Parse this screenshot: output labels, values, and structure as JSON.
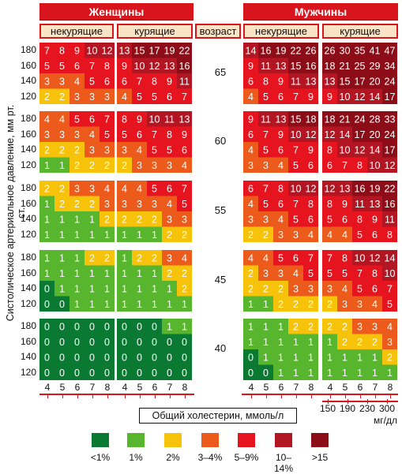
{
  "chart_data": {
    "type": "heatmap",
    "title_women": "Женщины",
    "title_men": "Мужчины",
    "col_group_labels": {
      "nonsmoking": "некурящие",
      "smoking": "курящие"
    },
    "age_header": "возраст",
    "ylabel": "Систолическое артериальное давление, мм рт. ст.",
    "xlabel": "Общий холестерин, ммоль/л",
    "bp_levels": [
      "180",
      "160",
      "140",
      "120"
    ],
    "cholesterol_mmol": [
      "4",
      "5",
      "6",
      "7",
      "8"
    ],
    "cholesterol_mgdl": [
      "150",
      "190",
      "230",
      "300"
    ],
    "mgdl_unit": "мг/дл",
    "ages": [
      "65",
      "60",
      "55",
      "45",
      "40"
    ],
    "women": {
      "nonsmoking": {
        "65": [
          [
            7,
            8,
            9,
            10,
            12
          ],
          [
            5,
            5,
            6,
            7,
            8
          ],
          [
            3,
            3,
            4,
            5,
            6
          ],
          [
            2,
            2,
            3,
            3,
            3
          ]
        ],
        "60": [
          [
            4,
            4,
            5,
            6,
            7
          ],
          [
            3,
            3,
            3,
            4,
            5
          ],
          [
            2,
            2,
            2,
            3,
            3
          ],
          [
            1,
            1,
            2,
            2,
            2
          ]
        ],
        "55": [
          [
            2,
            2,
            3,
            3,
            4
          ],
          [
            1,
            2,
            2,
            2,
            3
          ],
          [
            1,
            1,
            1,
            1,
            2
          ],
          [
            1,
            1,
            1,
            1,
            1
          ]
        ],
        "45": [
          [
            1,
            1,
            1,
            2,
            2
          ],
          [
            1,
            1,
            1,
            1,
            1
          ],
          [
            0,
            1,
            1,
            1,
            1
          ],
          [
            0,
            0,
            1,
            1,
            1
          ]
        ],
        "40": [
          [
            0,
            0,
            0,
            0,
            0
          ],
          [
            0,
            0,
            0,
            0,
            0
          ],
          [
            0,
            0,
            0,
            0,
            0
          ],
          [
            0,
            0,
            0,
            0,
            0
          ]
        ]
      },
      "smoking": {
        "65": [
          [
            13,
            15,
            17,
            19,
            22
          ],
          [
            9,
            10,
            12,
            13,
            16
          ],
          [
            6,
            7,
            8,
            9,
            11
          ],
          [
            4,
            5,
            5,
            6,
            7
          ]
        ],
        "60": [
          [
            8,
            9,
            10,
            11,
            13
          ],
          [
            5,
            6,
            7,
            8,
            9
          ],
          [
            3,
            4,
            5,
            5,
            6
          ],
          [
            2,
            3,
            3,
            3,
            4
          ]
        ],
        "55": [
          [
            4,
            4,
            5,
            6,
            7
          ],
          [
            3,
            3,
            3,
            4,
            5
          ],
          [
            2,
            2,
            2,
            3,
            3
          ],
          [
            1,
            1,
            1,
            2,
            2
          ]
        ],
        "45": [
          [
            1,
            2,
            2,
            3,
            4
          ],
          [
            1,
            1,
            1,
            2,
            2
          ],
          [
            1,
            1,
            1,
            1,
            2
          ],
          [
            1,
            1,
            1,
            1,
            1
          ]
        ],
        "40": [
          [
            0,
            0,
            0,
            1,
            1
          ],
          [
            0,
            0,
            0,
            0,
            0
          ],
          [
            0,
            0,
            0,
            0,
            0
          ],
          [
            0,
            0,
            0,
            0,
            0
          ]
        ]
      }
    },
    "men": {
      "nonsmoking": {
        "65": [
          [
            14,
            16,
            19,
            22,
            26
          ],
          [
            9,
            11,
            13,
            15,
            16
          ],
          [
            6,
            8,
            9,
            11,
            13
          ],
          [
            4,
            5,
            6,
            7,
            9
          ]
        ],
        "60": [
          [
            9,
            11,
            13,
            15,
            18
          ],
          [
            6,
            7,
            9,
            10,
            12
          ],
          [
            4,
            5,
            6,
            7,
            9
          ],
          [
            3,
            3,
            4,
            5,
            6
          ]
        ],
        "55": [
          [
            6,
            7,
            8,
            10,
            12
          ],
          [
            4,
            5,
            6,
            7,
            8
          ],
          [
            3,
            3,
            4,
            5,
            6
          ],
          [
            2,
            2,
            3,
            3,
            4
          ]
        ],
        "45": [
          [
            4,
            4,
            5,
            6,
            7
          ],
          [
            2,
            3,
            3,
            4,
            5
          ],
          [
            2,
            2,
            2,
            3,
            3
          ],
          [
            1,
            1,
            2,
            2,
            2
          ]
        ],
        "40": [
          [
            1,
            1,
            1,
            2,
            2
          ],
          [
            1,
            1,
            1,
            1,
            1
          ],
          [
            0,
            1,
            1,
            1,
            1
          ],
          [
            0,
            0,
            1,
            1,
            1
          ]
        ]
      },
      "smoking": {
        "65": [
          [
            26,
            30,
            35,
            41,
            47
          ],
          [
            18,
            21,
            25,
            29,
            34
          ],
          [
            13,
            15,
            17,
            20,
            24
          ],
          [
            9,
            10,
            12,
            14,
            17
          ]
        ],
        "60": [
          [
            18,
            21,
            24,
            28,
            33
          ],
          [
            12,
            14,
            17,
            20,
            24
          ],
          [
            8,
            10,
            12,
            14,
            17
          ],
          [
            6,
            7,
            8,
            10,
            12
          ]
        ],
        "55": [
          [
            12,
            13,
            16,
            19,
            22
          ],
          [
            8,
            9,
            11,
            13,
            16
          ],
          [
            5,
            6,
            8,
            9,
            11
          ],
          [
            4,
            4,
            5,
            6,
            8
          ]
        ],
        "45": [
          [
            7,
            8,
            10,
            12,
            14
          ],
          [
            5,
            5,
            7,
            8,
            10
          ],
          [
            3,
            4,
            5,
            6,
            7
          ],
          [
            2,
            3,
            3,
            4,
            5
          ]
        ],
        "40": [
          [
            2,
            2,
            3,
            3,
            4
          ],
          [
            1,
            2,
            2,
            2,
            3
          ],
          [
            1,
            1,
            1,
            1,
            2
          ],
          [
            1,
            1,
            1,
            1,
            1
          ]
        ]
      }
    },
    "legend": [
      {
        "label": "<1%",
        "color": "#0a7a33"
      },
      {
        "label": "1%",
        "color": "#58b52e"
      },
      {
        "label": "2%",
        "color": "#f6c20a"
      },
      {
        "label": "3–4%",
        "color": "#ec5a1c"
      },
      {
        "label": "5–9%",
        "color": "#e5141e"
      },
      {
        "label": "10–14%",
        "color": "#b31623"
      },
      {
        "label": ">15",
        "color": "#8c0d17"
      }
    ],
    "grid": false
  }
}
